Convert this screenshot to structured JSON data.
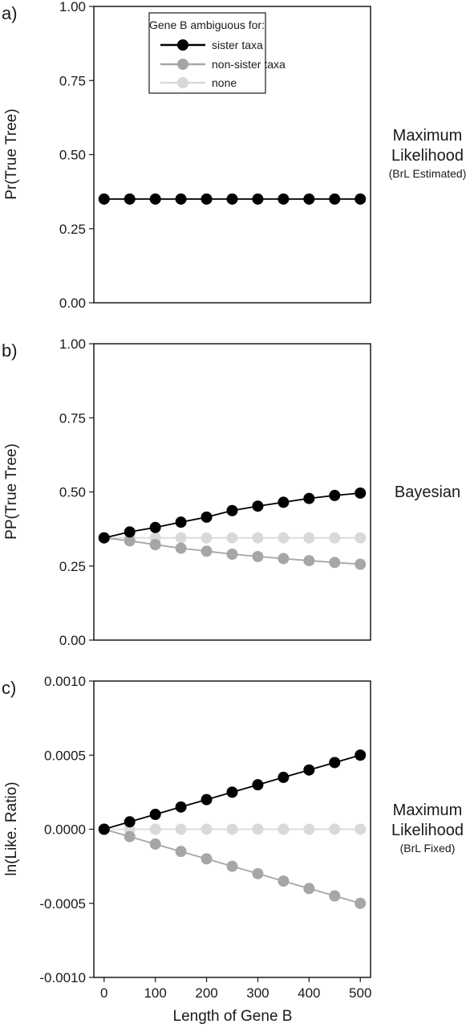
{
  "colors": {
    "sister": "#000000",
    "nonsister": "#a6a6a6",
    "none": "#d9d9d9"
  },
  "legend": {
    "title": "Gene B ambiguous for:",
    "entries": [
      "sister taxa",
      "non-sister taxa",
      "none"
    ],
    "placement": "top-center of panel a"
  },
  "chart_data": [
    {
      "type": "line",
      "panel": "a)",
      "ylabel": "Pr(True Tree)",
      "side_title": [
        "Maximum",
        "Likelihood"
      ],
      "side_subtitle": "(BrL Estimated)",
      "ylim": [
        0,
        1
      ],
      "yticks": [
        "0.00",
        "0.25",
        "0.50",
        "0.75",
        "1.00"
      ],
      "ytick_values": [
        0,
        0.25,
        0.5,
        0.75,
        1
      ],
      "xlim": [
        -20,
        520
      ],
      "x": [
        0,
        50,
        100,
        150,
        200,
        250,
        300,
        350,
        400,
        450,
        500
      ],
      "series": [
        {
          "name": "sister taxa",
          "values": [
            0.35,
            0.35,
            0.35,
            0.35,
            0.35,
            0.35,
            0.35,
            0.35,
            0.35,
            0.35,
            0.35
          ]
        }
      ]
    },
    {
      "type": "line",
      "panel": "b)",
      "ylabel": "PP(True Tree)",
      "side_title": [
        "Bayesian"
      ],
      "side_subtitle": "",
      "ylim": [
        0,
        1
      ],
      "yticks": [
        "0.00",
        "0.25",
        "0.50",
        "0.75",
        "1.00"
      ],
      "ytick_values": [
        0,
        0.25,
        0.5,
        0.75,
        1
      ],
      "xlim": [
        -20,
        520
      ],
      "x": [
        0,
        50,
        100,
        150,
        200,
        250,
        300,
        350,
        400,
        450,
        500
      ],
      "series": [
        {
          "name": "none",
          "values": [
            0.345,
            0.345,
            0.345,
            0.345,
            0.345,
            0.345,
            0.345,
            0.345,
            0.345,
            0.345,
            0.345
          ]
        },
        {
          "name": "non-sister taxa",
          "values": [
            0.345,
            0.335,
            0.322,
            0.31,
            0.3,
            0.29,
            0.282,
            0.275,
            0.268,
            0.262,
            0.256
          ]
        },
        {
          "name": "sister taxa",
          "values": [
            0.345,
            0.365,
            0.38,
            0.398,
            0.415,
            0.437,
            0.452,
            0.465,
            0.478,
            0.488,
            0.496
          ]
        }
      ]
    },
    {
      "type": "line",
      "panel": "c)",
      "ylabel": "ln(Like. Ratio)",
      "side_title": [
        "Maximum",
        "Likelihood"
      ],
      "side_subtitle": "(BrL Fixed)",
      "ylim": [
        -0.001,
        0.001
      ],
      "yticks": [
        "-0.0010",
        "-0.0005",
        "0.0000",
        "0.0005",
        "0.0010"
      ],
      "ytick_values": [
        -0.001,
        -0.0005,
        0,
        0.0005,
        0.001
      ],
      "xlim": [
        -20,
        520
      ],
      "xlabel": "Length of Gene B",
      "xticks": [
        "0",
        "100",
        "200",
        "300",
        "400",
        "500"
      ],
      "xtick_values": [
        0,
        100,
        200,
        300,
        400,
        500
      ],
      "x": [
        0,
        50,
        100,
        150,
        200,
        250,
        300,
        350,
        400,
        450,
        500
      ],
      "series": [
        {
          "name": "none",
          "values": [
            0,
            0,
            0,
            0,
            0,
            0,
            0,
            0,
            0,
            0,
            0
          ]
        },
        {
          "name": "non-sister taxa",
          "values": [
            0,
            -5e-05,
            -0.0001,
            -0.00015,
            -0.0002,
            -0.00025,
            -0.0003,
            -0.00035,
            -0.0004,
            -0.00045,
            -0.0005
          ]
        },
        {
          "name": "sister taxa",
          "values": [
            0,
            5e-05,
            0.0001,
            0.00015,
            0.0002,
            0.00025,
            0.0003,
            0.00035,
            0.0004,
            0.00045,
            0.0005
          ]
        }
      ]
    }
  ]
}
